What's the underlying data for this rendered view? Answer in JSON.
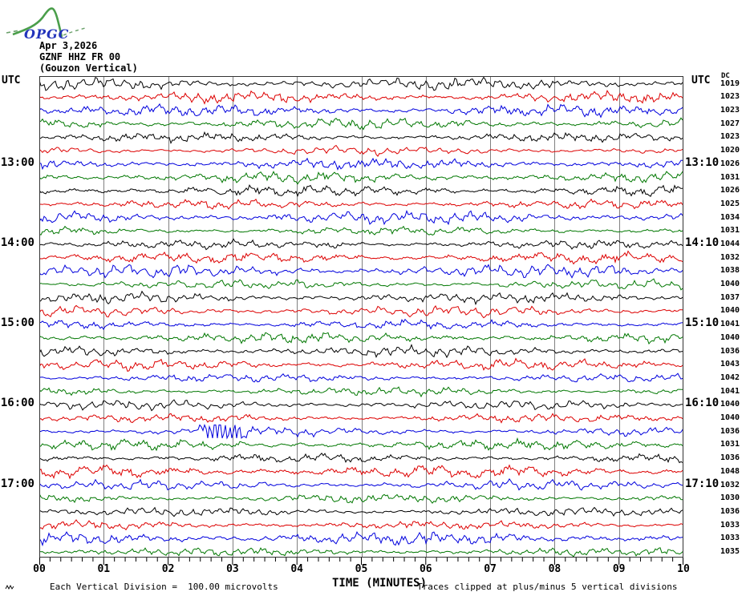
{
  "header": {
    "logo_text": "OPGC",
    "date": "Apr 3,2026",
    "station": "GZNF HHZ FR 00",
    "station_desc": "(Gouzon Vertical)"
  },
  "axes": {
    "utc_left": "UTC",
    "utc_right": "UTC",
    "dc_header": "DC",
    "x_ticks": [
      "00",
      "01",
      "02",
      "03",
      "04",
      "05",
      "06",
      "07",
      "08",
      "09",
      "10"
    ],
    "x_label": "TIME (MINUTES)"
  },
  "footer": {
    "scale_note": "Each Vertical Division =  100.00 microvolts",
    "clip_note": "Traces clipped at plus/minus 5 vertical divisions"
  },
  "colors": {
    "black": "#000000",
    "red": "#dd0000",
    "blue": "#0000dd",
    "green": "#007700",
    "grid": "#808080",
    "frame": "#333333",
    "logo_green": "#4a9e4a",
    "logo_blue": "#2233bb"
  },
  "chart_data": {
    "type": "line",
    "subtype": "helicorder-seismogram",
    "title": "GZNF HHZ FR 00 (Gouzon Vertical) — Apr 3,2026",
    "xlabel": "TIME (MINUTES)",
    "x_range_minutes": [
      0,
      10
    ],
    "minutes_per_row": 10,
    "clip_divisions": 5,
    "microvolts_per_division": 100.0,
    "trace_color_cycle": [
      "black",
      "red",
      "blue",
      "green"
    ],
    "rows": [
      {
        "left_label": "",
        "right_label": "",
        "dc": 1019,
        "color": "black"
      },
      {
        "left_label": "",
        "right_label": "",
        "dc": 1023,
        "color": "red"
      },
      {
        "left_label": "",
        "right_label": "",
        "dc": 1023,
        "color": "blue"
      },
      {
        "left_label": "",
        "right_label": "",
        "dc": 1027,
        "color": "green"
      },
      {
        "left_label": "",
        "right_label": "",
        "dc": 1023,
        "color": "black"
      },
      {
        "left_label": "",
        "right_label": "",
        "dc": 1020,
        "color": "red"
      },
      {
        "left_label": "13:00",
        "right_label": "13:10",
        "dc": 1026,
        "color": "blue"
      },
      {
        "left_label": "",
        "right_label": "",
        "dc": 1031,
        "color": "green"
      },
      {
        "left_label": "",
        "right_label": "",
        "dc": 1026,
        "color": "black"
      },
      {
        "left_label": "",
        "right_label": "",
        "dc": 1025,
        "color": "red"
      },
      {
        "left_label": "",
        "right_label": "",
        "dc": 1034,
        "color": "blue"
      },
      {
        "left_label": "",
        "right_label": "",
        "dc": 1031,
        "color": "green"
      },
      {
        "left_label": "14:00",
        "right_label": "14:10",
        "dc": 1044,
        "color": "black"
      },
      {
        "left_label": "",
        "right_label": "",
        "dc": 1032,
        "color": "red"
      },
      {
        "left_label": "",
        "right_label": "",
        "dc": 1038,
        "color": "blue"
      },
      {
        "left_label": "",
        "right_label": "",
        "dc": 1040,
        "color": "green"
      },
      {
        "left_label": "",
        "right_label": "",
        "dc": 1037,
        "color": "black"
      },
      {
        "left_label": "",
        "right_label": "",
        "dc": 1040,
        "color": "red"
      },
      {
        "left_label": "15:00",
        "right_label": "15:10",
        "dc": 1041,
        "color": "blue"
      },
      {
        "left_label": "",
        "right_label": "",
        "dc": 1040,
        "color": "green"
      },
      {
        "left_label": "",
        "right_label": "",
        "dc": 1036,
        "color": "black"
      },
      {
        "left_label": "",
        "right_label": "",
        "dc": 1043,
        "color": "red"
      },
      {
        "left_label": "",
        "right_label": "",
        "dc": 1042,
        "color": "blue"
      },
      {
        "left_label": "",
        "right_label": "",
        "dc": 1041,
        "color": "green"
      },
      {
        "left_label": "16:00",
        "right_label": "16:10",
        "dc": 1040,
        "color": "black"
      },
      {
        "left_label": "",
        "right_label": "",
        "dc": 1040,
        "color": "red"
      },
      {
        "left_label": "",
        "right_label": "",
        "dc": 1036,
        "color": "blue"
      },
      {
        "left_label": "",
        "right_label": "",
        "dc": 1031,
        "color": "green"
      },
      {
        "left_label": "",
        "right_label": "",
        "dc": 1036,
        "color": "black"
      },
      {
        "left_label": "",
        "right_label": "",
        "dc": 1048,
        "color": "red"
      },
      {
        "left_label": "17:00",
        "right_label": "17:10",
        "dc": 1032,
        "color": "blue"
      },
      {
        "left_label": "",
        "right_label": "",
        "dc": 1030,
        "color": "green"
      },
      {
        "left_label": "",
        "right_label": "",
        "dc": 1036,
        "color": "black"
      },
      {
        "left_label": "",
        "right_label": "",
        "dc": 1033,
        "color": "red"
      },
      {
        "left_label": "",
        "right_label": "",
        "dc": 1033,
        "color": "blue"
      },
      {
        "left_label": "",
        "right_label": "",
        "dc": 1035,
        "color": "green"
      }
    ],
    "synthetic_waveform": {
      "note": "waveform shapes are background microseismic noise, not readable from pixels; regenerated procedurally",
      "seed": 424242,
      "bursts": [
        {
          "row": 26,
          "start_min": 2.25,
          "end_min": 3.45,
          "gain": 3.1
        },
        {
          "row": 12,
          "start_min": 3.9,
          "end_min": 5.2,
          "gain": 1.7
        }
      ]
    }
  }
}
